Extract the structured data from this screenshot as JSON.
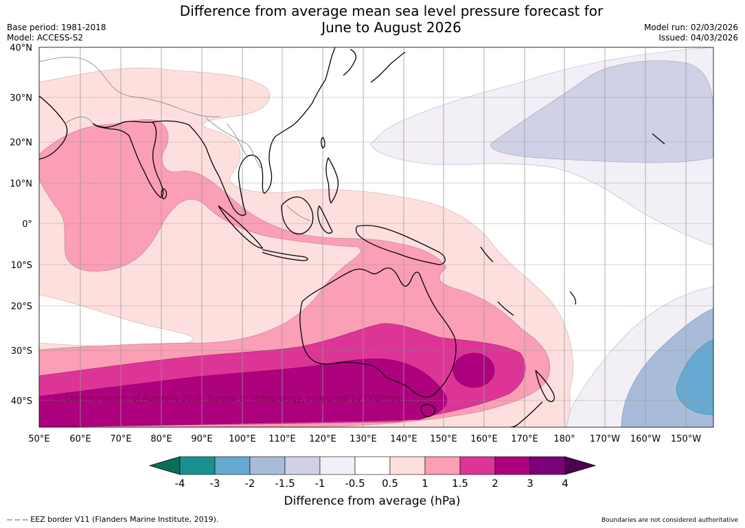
{
  "header": {
    "title_line1": "Difference from average mean sea level pressure forecast for",
    "title_line2": "June to August 2026",
    "base_period": "Base period: 1981-2018",
    "model": "Model: ACCESS-S2",
    "model_run": "Model run: 02/03/2026",
    "issued": "Issued: 04/03/2026"
  },
  "map": {
    "lat_labels": [
      "40°N",
      "30°N",
      "20°N",
      "10°N",
      "0°",
      "10°S",
      "20°S",
      "30°S",
      "40°S"
    ],
    "lon_labels": [
      "50°E",
      "60°E",
      "70°E",
      "80°E",
      "90°E",
      "100°E",
      "110°E",
      "120°E",
      "130°E",
      "140°E",
      "150°E",
      "160°E",
      "170°E",
      "180°",
      "170°W",
      "160°W",
      "150°W"
    ],
    "copyright": "© Commonwealth of Australia 2026, Bureau of Meteorology, supported by COSPPac"
  },
  "colorbar": {
    "ticks": [
      "-4",
      "-3",
      "-2",
      "-1.5",
      "-1",
      "-0.5",
      "0.5",
      "1",
      "1.5",
      "2",
      "3",
      "4"
    ],
    "colors": [
      "#1a9090",
      "#66a9d1",
      "#a8bcda",
      "#d0d1e6",
      "#f3eff6",
      "#ffffff",
      "#fde0dd",
      "#fa9fb5",
      "#dd3497",
      "#ae017e",
      "#7a0177"
    ],
    "low_color": "#0b6e5a",
    "high_color": "#4d004b",
    "title": "Difference from average (hPa)"
  },
  "footer": {
    "eez_note": "--  --  -- EEZ border V11 (Flanders Marine Institute, 2019).",
    "disclaimer": "Boundaries are not considered authoritative"
  }
}
